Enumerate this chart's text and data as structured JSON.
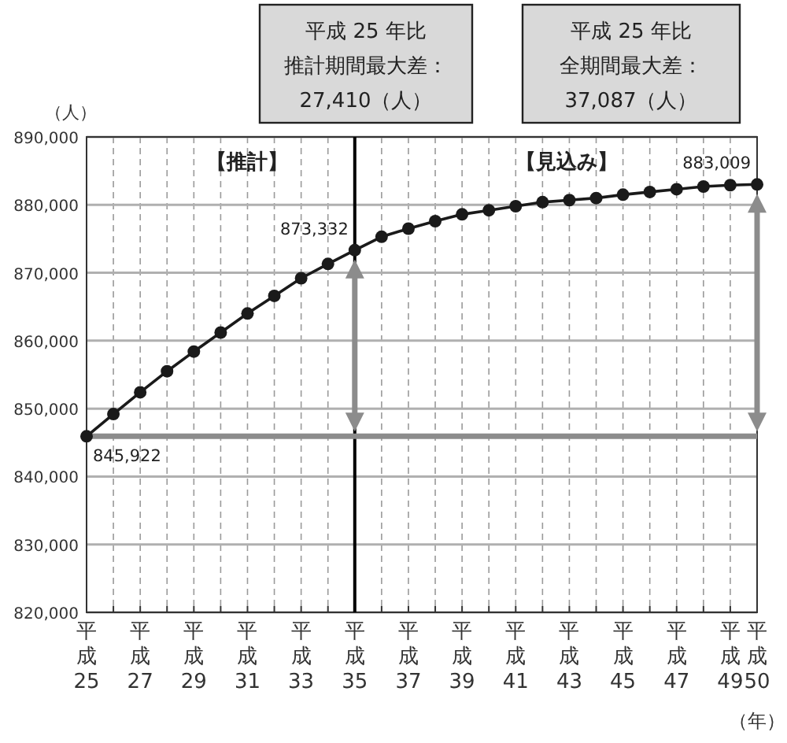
{
  "chart_data": {
    "type": "line",
    "ylabel": "（人）",
    "xlabel": "（年）",
    "categories": [
      "平成25",
      null,
      "平成27",
      null,
      "平成29",
      null,
      "平成31",
      null,
      "平成33",
      null,
      "平成35",
      null,
      "平成37",
      null,
      "平成39",
      null,
      "平成41",
      null,
      "平成43",
      null,
      "平成45",
      null,
      "平成47",
      null,
      "平成49",
      "平成50"
    ],
    "series": [
      {
        "color": "#1a1a1a",
        "values": [
          845922,
          849200,
          852400,
          855500,
          858400,
          861200,
          864000,
          866600,
          869200,
          871300,
          873332,
          875300,
          876500,
          877600,
          878600,
          879200,
          879800,
          880400,
          880700,
          881000,
          881500,
          881900,
          882300,
          882700,
          882900,
          883009
        ],
        "value_labels": [
          "845,922",
          null,
          null,
          null,
          null,
          null,
          null,
          null,
          null,
          null,
          "873,332",
          null,
          null,
          null,
          null,
          null,
          null,
          null,
          null,
          null,
          null,
          null,
          null,
          null,
          null,
          "883,009"
        ]
      }
    ],
    "ylim": [
      820000,
      890000
    ],
    "yticks": [
      {
        "value": 820000,
        "label": "820,000"
      },
      {
        "value": 830000,
        "label": "830,000"
      },
      {
        "value": 840000,
        "label": "840,000"
      },
      {
        "value": 850000,
        "label": "850,000"
      },
      {
        "value": 860000,
        "label": "860,000"
      },
      {
        "value": 870000,
        "label": "870,000"
      },
      {
        "value": 880000,
        "label": "880,000"
      },
      {
        "value": 890000,
        "label": "890,000"
      }
    ],
    "grid": true,
    "marker": "circle",
    "line_style": "solid",
    "ref_lines": [
      {
        "axis": "x",
        "value": "平成35",
        "color": "#000000"
      },
      {
        "axis": "y",
        "value": 845922,
        "color": "#8c8c8c"
      }
    ],
    "annotations": [
      "平成 25 年比",
      "推計期間最大差：",
      "27,410（人）",
      "平成 25 年比",
      "全期間最大差：",
      "37,087（人）",
      "【推計】",
      "【見込み】"
    ]
  }
}
